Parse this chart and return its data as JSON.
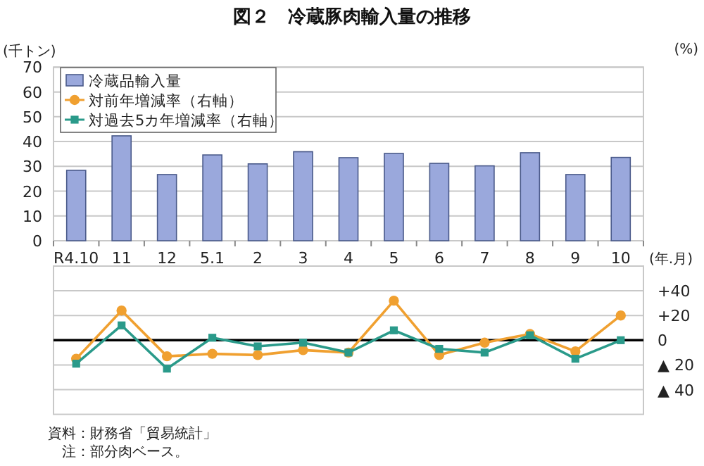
{
  "chart_data": [
    {
      "type": "bar",
      "title": "図２　冷蔵豚肉輸入量の推移",
      "xlabel": "(年.月)",
      "ylabel": "(千トン)",
      "categories": [
        "R4.10",
        "11",
        "12",
        "5.1",
        "2",
        "3",
        "4",
        "5",
        "6",
        "7",
        "8",
        "9",
        "10"
      ],
      "series": [
        {
          "name": "冷蔵品輸入量",
          "color": "#9aa8dc",
          "values": [
            28.4,
            42.3,
            26.7,
            34.6,
            31.0,
            35.9,
            33.5,
            35.2,
            31.2,
            30.2,
            35.5,
            26.7,
            33.6
          ]
        }
      ],
      "ylim": [
        0,
        70
      ],
      "yticks": [
        0,
        10,
        20,
        30,
        40,
        50,
        60,
        70
      ],
      "grid": "y",
      "legend": "top left",
      "annotations": [
        "(%)",
        "資料：財務省「貿易統計」",
        "注：部分肉ベース。"
      ]
    },
    {
      "type": "line",
      "categories": [
        null,
        null,
        null,
        null,
        null,
        null,
        null,
        null,
        null,
        null,
        null,
        null,
        null
      ],
      "series": [
        {
          "name": "対前年増減率（右軸）",
          "color": "#f0a030",
          "marker": "circle",
          "values": [
            -15,
            24,
            -13,
            -11,
            -12,
            -8,
            -10,
            32,
            -12,
            -2,
            5,
            -9,
            20
          ]
        },
        {
          "name": "対過去5カ年増減率（右軸）",
          "color": "#2a9a8a",
          "marker": "square",
          "values": [
            -19,
            12,
            -23,
            2,
            -5,
            -2,
            -10,
            8,
            -7,
            -10,
            4,
            -15,
            0
          ]
        }
      ],
      "ylim": [
        -60,
        60
      ],
      "yticks": [
        {
          "value": -40,
          "label": "▲ 40"
        },
        {
          "value": -20,
          "label": "▲ 20"
        },
        0,
        {
          "value": 20,
          "label": "+20"
        },
        {
          "value": 40,
          "label": "+40"
        }
      ],
      "grid": "y",
      "tick_labels": "y",
      "ref_lines": [
        {
          "axis": "y",
          "value": 0,
          "color": "#000000"
        }
      ]
    }
  ]
}
